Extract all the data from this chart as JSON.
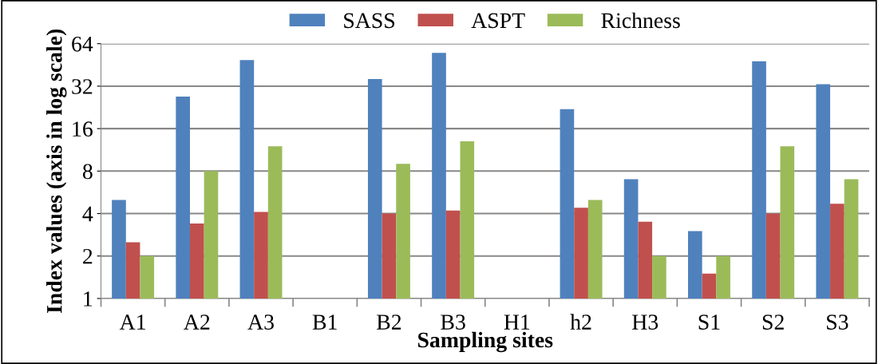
{
  "chart_data": {
    "type": "bar",
    "xlabel": "Sampling sites",
    "ylabel": "Index values (axis in log scale)",
    "categories": [
      "A1",
      "A2",
      "A3",
      "B1",
      "B2",
      "B3",
      "H1",
      "h2",
      "H3",
      "S1",
      "S2",
      "S3"
    ],
    "series": [
      {
        "name": "SASS",
        "color": "#4f81bd",
        "values": [
          5,
          27,
          49,
          null,
          36,
          55,
          null,
          22,
          7,
          3,
          48,
          33
        ]
      },
      {
        "name": "ASPT",
        "color": "#c0504d",
        "values": [
          2.5,
          3.4,
          4.1,
          null,
          4,
          4.2,
          null,
          4.4,
          3.5,
          1.5,
          4,
          4.7
        ]
      },
      {
        "name": "Richness",
        "color": "#9bbb59",
        "values": [
          2,
          8,
          12,
          null,
          9,
          13,
          null,
          5,
          2,
          2,
          12,
          7
        ]
      }
    ],
    "log": true,
    "ylim": [
      1,
      64
    ],
    "yticks": [
      1,
      2,
      4,
      8,
      16,
      32,
      64
    ],
    "grid": "y",
    "legend": "top"
  }
}
